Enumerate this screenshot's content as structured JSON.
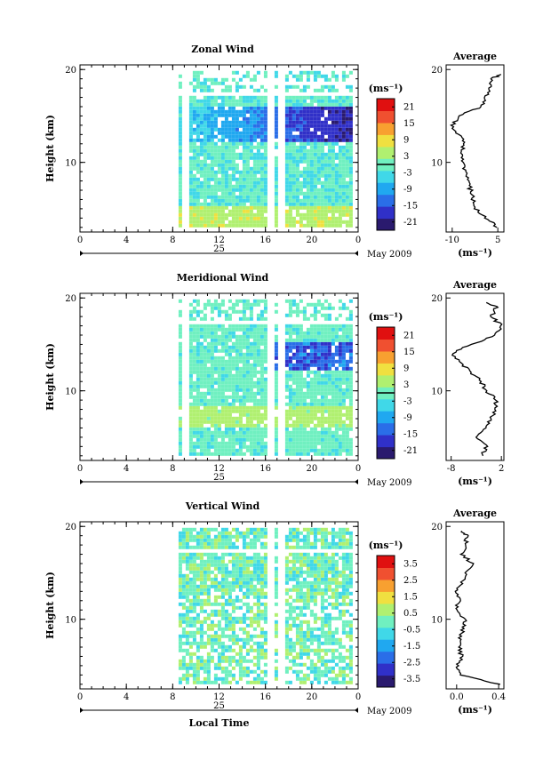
{
  "chart_data": [
    {
      "type": "heatmap",
      "title": "Zonal Wind",
      "xlabel": "",
      "ylabel": "Height (km)",
      "xticks": [
        "0",
        "4",
        "8",
        "12",
        "16",
        "20",
        "0"
      ],
      "xlim": [
        0,
        24
      ],
      "yticks": [
        "10",
        "20"
      ],
      "ylim": [
        2.5,
        20.5
      ],
      "date_label": "25",
      "month_label": "May 2009",
      "colorbar": {
        "unit": "(ms⁻¹)",
        "ticks": [
          "21",
          "15",
          "9",
          "3",
          "-3",
          "-9",
          "-15",
          "-21"
        ],
        "range": [
          -24,
          24
        ],
        "zero_line": 0
      },
      "grid": false,
      "data_coverage": {
        "time_start": 8.5,
        "time_end": 23.5,
        "height_min": 3.0,
        "height_max": 19.5,
        "gaps": [
          9.0,
          16.3,
          17.2
        ]
      },
      "profile": {
        "title": "Average",
        "xticks": [
          "-10",
          "5"
        ],
        "xlim": [
          -12,
          7
        ],
        "xunit": "(ms⁻¹)",
        "heights": [
          3,
          4,
          5,
          6,
          7,
          8,
          9,
          10,
          11,
          12,
          13,
          14,
          15,
          16,
          17,
          18,
          19,
          19.5
        ],
        "values": [
          5,
          1,
          -2,
          -3,
          -4,
          -5,
          -6,
          -6,
          -7,
          -6,
          -8,
          -10,
          -8,
          0,
          1,
          2,
          3,
          6
        ]
      }
    },
    {
      "type": "heatmap",
      "title": "Meridional Wind",
      "xlabel": "",
      "ylabel": "Height (km)",
      "xticks": [
        "0",
        "4",
        "8",
        "12",
        "16",
        "20",
        "0"
      ],
      "xlim": [
        0,
        24
      ],
      "yticks": [
        "10",
        "20"
      ],
      "ylim": [
        2.5,
        20.5
      ],
      "date_label": "25",
      "month_label": "May 2009",
      "colorbar": {
        "unit": "(ms⁻¹)",
        "ticks": [
          "21",
          "15",
          "9",
          "3",
          "-3",
          "-9",
          "-15",
          "-21"
        ],
        "range": [
          -24,
          24
        ],
        "zero_line": 0
      },
      "grid": false,
      "data_coverage": {
        "time_start": 8.5,
        "time_end": 23.5,
        "height_min": 3.0,
        "height_max": 19.5,
        "gaps": [
          9.0,
          16.3,
          17.2
        ]
      },
      "profile": {
        "title": "Average",
        "xticks": [
          "-8",
          "2"
        ],
        "xlim": [
          -9,
          2.5
        ],
        "xunit": "(ms⁻¹)",
        "heights": [
          3,
          4,
          5,
          6,
          7,
          8,
          9,
          10,
          11,
          12,
          13,
          14,
          15,
          16,
          17,
          18,
          19,
          19.5
        ],
        "values": [
          -2,
          -1,
          -3,
          -1,
          0,
          1,
          1,
          -1,
          -2,
          -4,
          -6,
          -8,
          -4,
          1,
          2,
          0,
          1,
          -1
        ]
      }
    },
    {
      "type": "heatmap",
      "title": "Vertical Wind",
      "xlabel": "Local Time",
      "ylabel": "Height (km)",
      "xticks": [
        "0",
        "4",
        "8",
        "12",
        "16",
        "20",
        "0"
      ],
      "xlim": [
        0,
        24
      ],
      "yticks": [
        "10",
        "20"
      ],
      "ylim": [
        2.5,
        20.5
      ],
      "date_label": "25",
      "month_label": "May 2009",
      "colorbar": {
        "unit": "(ms⁻¹)",
        "ticks": [
          "3.5",
          "2.5",
          "1.5",
          "0.5",
          "-0.5",
          "-1.5",
          "-2.5",
          "-3.5"
        ],
        "range": [
          -4,
          4
        ],
        "zero_line": null
      },
      "grid": false,
      "data_coverage": {
        "time_start": 8.5,
        "time_end": 23.5,
        "height_min": 3.0,
        "height_max": 19.5,
        "gaps": [
          16.3,
          17.2
        ]
      },
      "profile": {
        "title": "Average",
        "xticks": [
          "0.0",
          "0.4"
        ],
        "xlim": [
          -0.1,
          0.45
        ],
        "xunit": "(ms⁻¹)",
        "heights": [
          3,
          4,
          5,
          6,
          7,
          8,
          9,
          10,
          11,
          12,
          13,
          14,
          15,
          16,
          17,
          18,
          19,
          19.5
        ],
        "values": [
          0.4,
          0.05,
          0.0,
          0.05,
          0.02,
          0.03,
          0.06,
          0.08,
          0.0,
          0.02,
          0.0,
          0.05,
          0.1,
          0.15,
          0.05,
          0.08,
          0.1,
          0.05
        ]
      }
    }
  ],
  "colors": {
    "scale": [
      "#2a1a6e",
      "#3030c8",
      "#2a6ee8",
      "#20a8f0",
      "#40d8e8",
      "#70f0c0",
      "#b0f070",
      "#f0e040",
      "#f8a030",
      "#f05030",
      "#e01010"
    ]
  }
}
